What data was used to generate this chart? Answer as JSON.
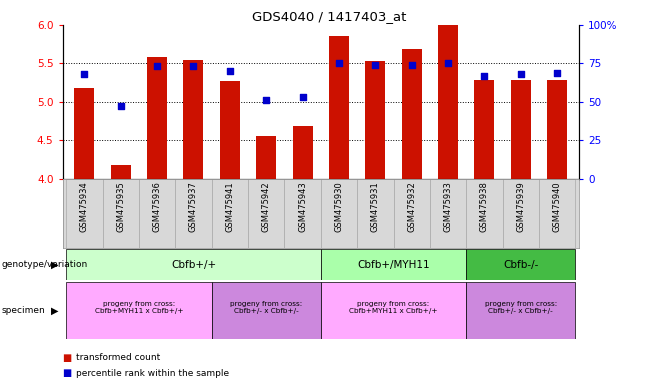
{
  "title": "GDS4040 / 1417403_at",
  "samples": [
    "GSM475934",
    "GSM475935",
    "GSM475936",
    "GSM475937",
    "GSM475941",
    "GSM475942",
    "GSM475943",
    "GSM475930",
    "GSM475931",
    "GSM475932",
    "GSM475933",
    "GSM475938",
    "GSM475939",
    "GSM475940"
  ],
  "bar_values": [
    5.18,
    4.18,
    5.58,
    5.55,
    5.27,
    4.55,
    4.68,
    5.85,
    5.53,
    5.69,
    6.0,
    5.28,
    5.28,
    5.28
  ],
  "dot_values": [
    68,
    47,
    73,
    73,
    70,
    51,
    53,
    75,
    74,
    74,
    75,
    67,
    68,
    69
  ],
  "bar_color": "#cc1100",
  "dot_color": "#0000cc",
  "ymin": 4.0,
  "ymax": 6.0,
  "y2min": 0,
  "y2max": 100,
  "yticks": [
    4.0,
    4.5,
    5.0,
    5.5,
    6.0
  ],
  "y2ticks": [
    0,
    25,
    50,
    75,
    100
  ],
  "y2tick_labels": [
    "0",
    "25",
    "50",
    "75",
    "100%"
  ],
  "grid_values": [
    4.5,
    5.0,
    5.5
  ],
  "genotype_groups": [
    {
      "label": "Cbfb+/+",
      "start": 0,
      "end": 7,
      "color": "#ccffcc"
    },
    {
      "label": "Cbfb+/MYH11",
      "start": 7,
      "end": 11,
      "color": "#aaffaa"
    },
    {
      "label": "Cbfb-/-",
      "start": 11,
      "end": 14,
      "color": "#44bb44"
    }
  ],
  "specimen_groups": [
    {
      "label": "progeny from cross:\nCbfb+MYH11 x Cbfb+/+",
      "start": 0,
      "end": 4,
      "color": "#ffaaff"
    },
    {
      "label": "progeny from cross:\nCbfb+/- x Cbfb+/-",
      "start": 4,
      "end": 7,
      "color": "#dd88ee"
    },
    {
      "label": "progeny from cross:\nCbfb+MYH11 x Cbfb+/+",
      "start": 7,
      "end": 11,
      "color": "#ffaaff"
    },
    {
      "label": "progeny from cross:\nCbfb+/- x Cbfb+/-",
      "start": 11,
      "end": 14,
      "color": "#dd88ee"
    }
  ],
  "legend_bar_label": "transformed count",
  "legend_dot_label": "percentile rank within the sample",
  "genotype_label": "genotype/variation",
  "specimen_label": "specimen",
  "bg_color": "#ffffff",
  "sample_bg_color": "#d8d8d8"
}
